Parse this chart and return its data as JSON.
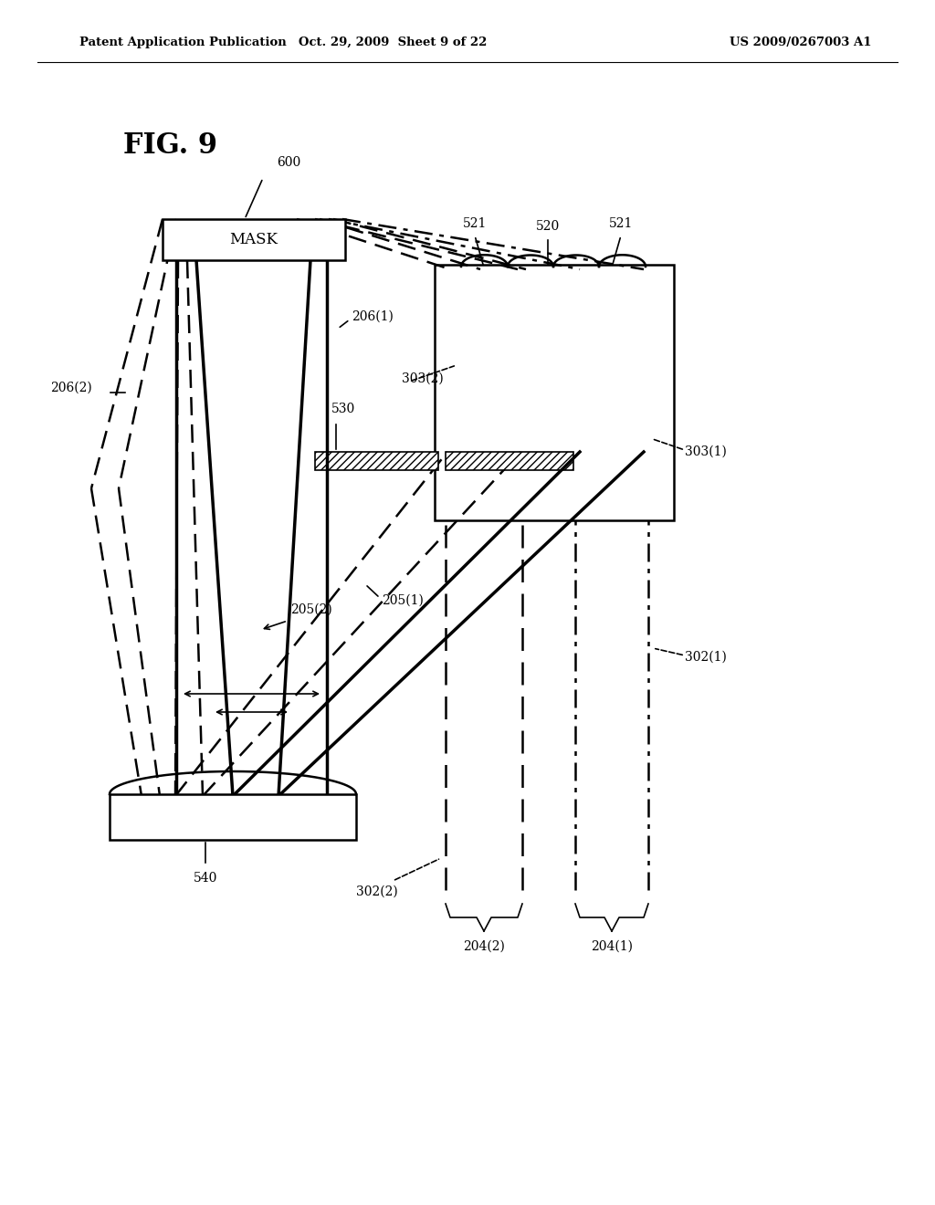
{
  "header_left": "Patent Application Publication",
  "header_center": "Oct. 29, 2009  Sheet 9 of 22",
  "header_right": "US 2009/0267003 A1",
  "bg_color": "#ffffff",
  "fig_label": "FIG. 9"
}
